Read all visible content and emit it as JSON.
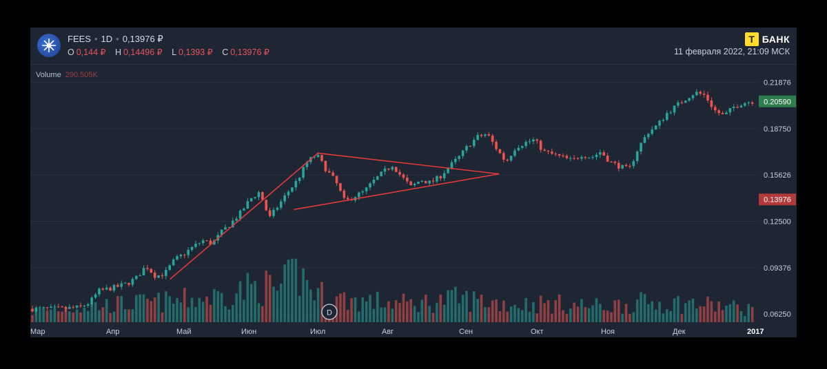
{
  "header": {
    "ticker": "FEES",
    "interval": "1D",
    "price": "0,13976 ₽",
    "ohlc": [
      {
        "key": "O",
        "value": "0,144 ₽"
      },
      {
        "key": "H",
        "value": "0,14496 ₽"
      },
      {
        "key": "L",
        "value": "0,1393 ₽"
      },
      {
        "key": "C",
        "value": "0,13976 ₽"
      }
    ],
    "brand_glyph": "Т",
    "brand_name": "БАНК",
    "datetime": "11 февраля 2022, 21:09 МСК"
  },
  "volume": {
    "label": "Volume",
    "value": "290.505K"
  },
  "colors": {
    "up": "#26a69a",
    "down": "#ef5350",
    "background": "#1f2633",
    "trendline": "#e23a3a",
    "badge_green": "#2e7d4f",
    "badge_red": "#b23a3a"
  },
  "marker": {
    "label": "D",
    "icon": "dividend-marker-icon"
  },
  "chart_data": {
    "type": "candlestick",
    "y_ticks": [
      "0.21876",
      "0.18750",
      "0.15626",
      "0.12500",
      "0.09376",
      "0.06250"
    ],
    "ylim": [
      0.057,
      0.226
    ],
    "price_badges": [
      {
        "label": "0.20590",
        "value": 0.2059,
        "color": "green"
      },
      {
        "label": "0.13976",
        "value": 0.13976,
        "color": "red"
      }
    ],
    "x_ticks": [
      "Мар",
      "Апр",
      "Май",
      "Июн",
      "Июл",
      "Авг",
      "Сен",
      "Окт",
      "Ноя",
      "Дек",
      "2017"
    ],
    "price_path": [
      [
        0,
        0.066
      ],
      [
        3,
        0.066
      ],
      [
        5,
        0.067
      ],
      [
        6,
        0.07
      ],
      [
        7,
        0.078
      ],
      [
        9,
        0.081
      ],
      [
        10,
        0.083
      ],
      [
        11,
        0.087
      ],
      [
        12,
        0.095
      ],
      [
        13,
        0.088
      ],
      [
        14,
        0.09
      ],
      [
        15,
        0.099
      ],
      [
        16,
        0.103
      ],
      [
        17,
        0.108
      ],
      [
        18,
        0.112
      ],
      [
        19,
        0.11
      ],
      [
        20,
        0.118
      ],
      [
        21,
        0.124
      ],
      [
        22,
        0.131
      ],
      [
        23,
        0.14
      ],
      [
        24,
        0.145
      ],
      [
        25,
        0.127
      ],
      [
        26,
        0.136
      ],
      [
        27,
        0.145
      ],
      [
        28,
        0.153
      ],
      [
        29,
        0.165
      ],
      [
        30,
        0.17
      ],
      [
        31,
        0.16
      ],
      [
        32,
        0.152
      ],
      [
        33,
        0.138
      ],
      [
        34,
        0.142
      ],
      [
        35,
        0.145
      ],
      [
        36,
        0.152
      ],
      [
        37,
        0.158
      ],
      [
        38,
        0.163
      ],
      [
        39,
        0.155
      ],
      [
        40,
        0.148
      ],
      [
        41,
        0.153
      ],
      [
        42,
        0.151
      ],
      [
        43,
        0.155
      ],
      [
        44,
        0.162
      ],
      [
        45,
        0.168
      ],
      [
        46,
        0.176
      ],
      [
        47,
        0.182
      ],
      [
        48,
        0.184
      ],
      [
        49,
        0.174
      ],
      [
        50,
        0.165
      ],
      [
        51,
        0.175
      ],
      [
        52,
        0.178
      ],
      [
        53,
        0.18
      ],
      [
        54,
        0.172
      ],
      [
        55,
        0.17
      ],
      [
        56,
        0.168
      ],
      [
        57,
        0.166
      ],
      [
        58,
        0.17
      ],
      [
        59,
        0.168
      ],
      [
        60,
        0.172
      ],
      [
        61,
        0.165
      ],
      [
        62,
        0.162
      ],
      [
        63,
        0.16
      ],
      [
        64,
        0.175
      ],
      [
        65,
        0.185
      ],
      [
        66,
        0.19
      ],
      [
        67,
        0.198
      ],
      [
        68,
        0.203
      ],
      [
        69,
        0.208
      ],
      [
        70,
        0.212
      ],
      [
        71,
        0.21
      ],
      [
        72,
        0.2
      ],
      [
        73,
        0.196
      ],
      [
        74,
        0.202
      ],
      [
        75,
        0.205
      ],
      [
        76,
        0.2059
      ]
    ],
    "volume_path": [
      [
        0,
        0.2
      ],
      [
        5,
        0.3
      ],
      [
        10,
        0.35
      ],
      [
        15,
        0.4
      ],
      [
        20,
        0.5
      ],
      [
        22,
        0.6
      ],
      [
        24,
        0.7
      ],
      [
        26,
        0.6
      ],
      [
        28,
        0.95
      ],
      [
        30,
        0.55
      ],
      [
        32,
        0.45
      ],
      [
        35,
        0.4
      ],
      [
        40,
        0.35
      ],
      [
        45,
        0.45
      ],
      [
        48,
        0.4
      ],
      [
        50,
        0.35
      ],
      [
        55,
        0.35
      ],
      [
        60,
        0.3
      ],
      [
        65,
        0.38
      ],
      [
        70,
        0.35
      ],
      [
        73,
        0.3
      ],
      [
        76,
        0.25
      ]
    ],
    "annotations": [
      {
        "type": "line",
        "name": "trendline-uptrend",
        "from": [
          14.5,
          0.086
        ],
        "to": [
          30,
          0.171
        ]
      },
      {
        "type": "line",
        "name": "triangle-upper-line",
        "from": [
          30,
          0.171
        ],
        "to": [
          49,
          0.157
        ]
      },
      {
        "type": "line",
        "name": "triangle-lower-line",
        "from": [
          27.5,
          0.133
        ],
        "to": [
          49,
          0.157
        ]
      }
    ]
  }
}
